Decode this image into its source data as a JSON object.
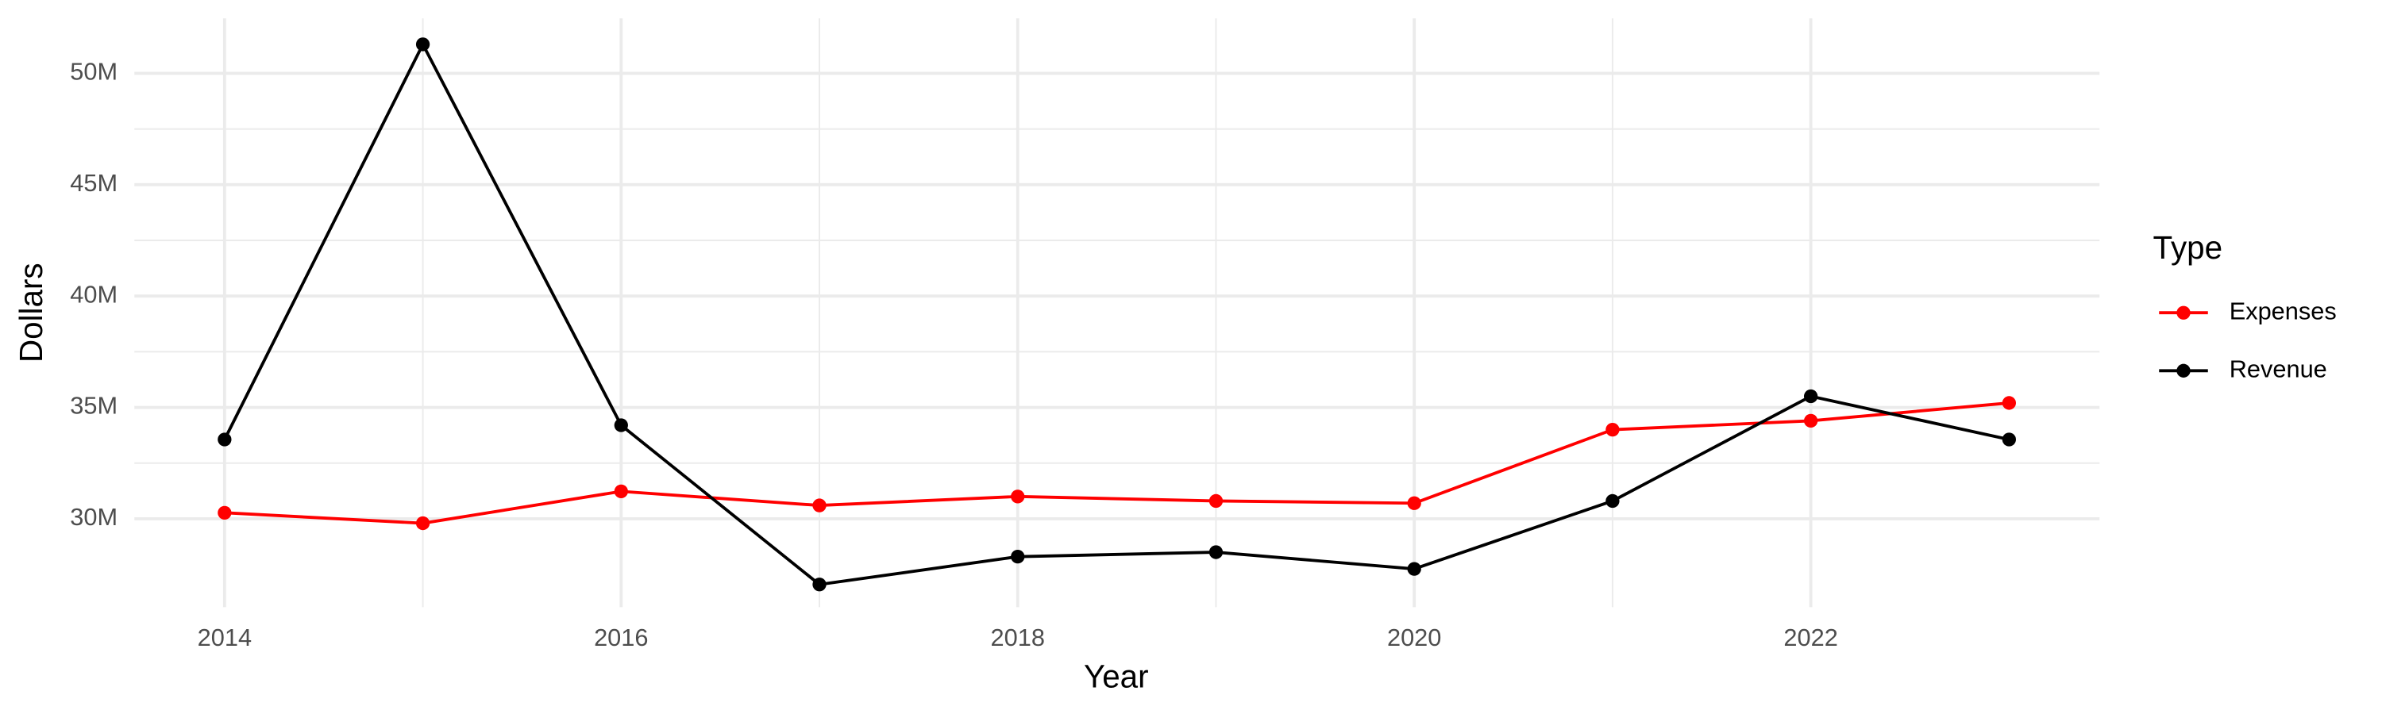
{
  "chart_data": {
    "type": "line",
    "x_label": "Year",
    "y_label": "Dollars",
    "legend_title": "Type",
    "x": [
      2014,
      2015,
      2016,
      2017,
      2018,
      2019,
      2020,
      2021,
      2022,
      2023
    ],
    "series": [
      {
        "name": "Expenses",
        "color": "#ff0000",
        "values": [
          30270000,
          29800000,
          31230000,
          30600000,
          31000000,
          30800000,
          30700000,
          34000000,
          34400000,
          35200000
        ]
      },
      {
        "name": "Revenue",
        "color": "#000000",
        "values": [
          33560000,
          51300000,
          34200000,
          27050000,
          28300000,
          28500000,
          27750000,
          30800000,
          35500000,
          33560000
        ]
      }
    ],
    "xlim": [
      2013.545,
      2023.456
    ],
    "xticks": [
      2014,
      2016,
      2018,
      2020,
      2022
    ],
    "ylim": [
      26030000,
      52470000
    ],
    "yticks": [
      {
        "value": 30000000,
        "label": "30M"
      },
      {
        "value": 35000000,
        "label": "35M"
      },
      {
        "value": 40000000,
        "label": "40M"
      },
      {
        "value": 45000000,
        "label": "45M"
      },
      {
        "value": 50000000,
        "label": "50M"
      }
    ],
    "grid": true,
    "legend": "right"
  }
}
